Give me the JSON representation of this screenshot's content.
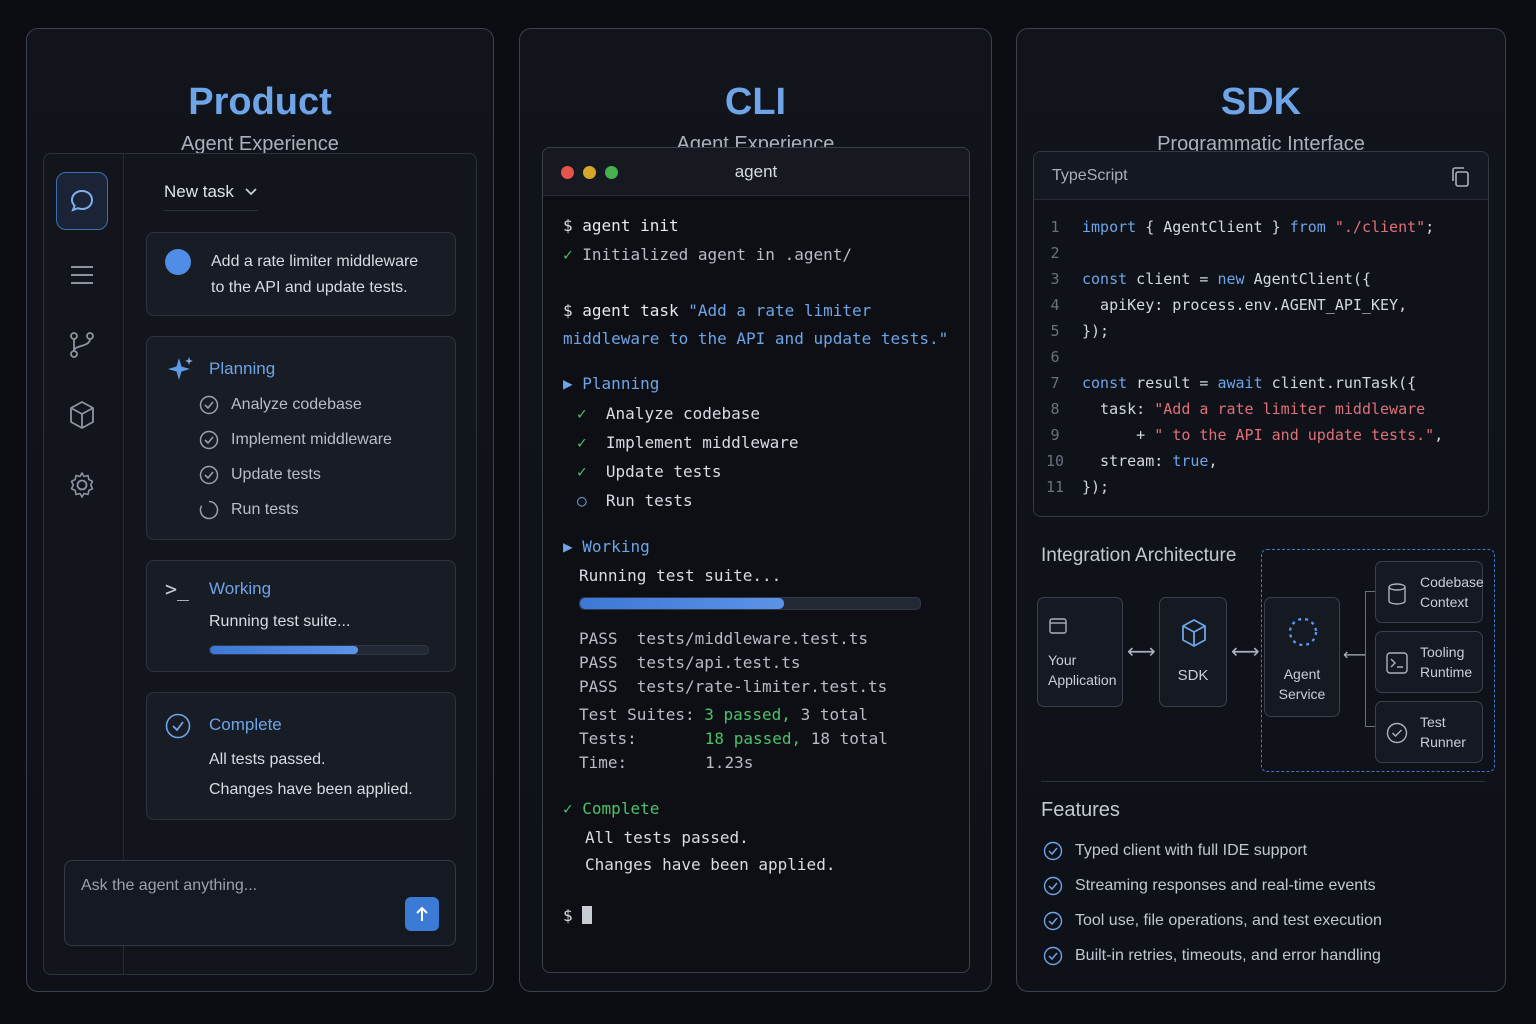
{
  "product": {
    "title": "Product",
    "subtitle": "Agent Experience",
    "new_task": "New task",
    "prompt_line1": "Add a rate limiter middleware",
    "prompt_line2": "to the API and update tests.",
    "planning": {
      "label": "Planning",
      "items": [
        "Analyze codebase",
        "Implement middleware",
        "Update tests",
        "Run tests"
      ]
    },
    "working": {
      "label": "Working",
      "text": "Running test suite...",
      "progress": 0.68
    },
    "complete": {
      "label": "Complete",
      "line1": "All tests passed.",
      "line2": "Changes have been applied."
    },
    "ask_placeholder": "Ask the agent anything...",
    "rail_icons": [
      "chat-icon",
      "menu-icon",
      "branch-icon",
      "cube-icon",
      "gear-icon"
    ]
  },
  "cli": {
    "title": "CLI",
    "subtitle": "Agent Experience",
    "window_title": "agent",
    "prompt": "$",
    "init_cmd": "agent init",
    "init_result": "Initialized agent in .agent/",
    "task_cmd": "agent task",
    "task_arg1": "\"Add a rate limiter",
    "task_arg2": "middleware to the API and update tests.\"",
    "planning_label": "Planning",
    "plan_items": [
      "Analyze codebase",
      "Implement middleware",
      "Update tests",
      "Run tests"
    ],
    "working_label": "Working",
    "working_text": "Running test suite...",
    "progress": 0.6,
    "pass_label": "PASS",
    "pass_files": [
      "tests/middleware.test.ts",
      "tests/api.test.ts",
      "tests/rate-limiter.test.ts"
    ],
    "suites_label": "Test Suites:",
    "suites_passed": "3 passed,",
    "suites_total": "3 total",
    "tests_label": "Tests:",
    "tests_passed": "18 passed,",
    "tests_total": "18 total",
    "time_label": "Time:",
    "time_value": "1.23s",
    "complete_label": "Complete",
    "complete_line1": "All tests passed.",
    "complete_line2": "Changes have been applied.",
    "colors": {
      "red": "#e5534b",
      "yellow": "#d6a62a",
      "green": "#45b24f"
    }
  },
  "sdk": {
    "title": "SDK",
    "subtitle": "Programmatic Interface",
    "language": "TypeScript",
    "code": {
      "l1": [
        "import",
        " { AgentClient } ",
        "from",
        " \"./client\"",
        ";"
      ],
      "l3": [
        "const",
        " client = ",
        "new",
        " AgentClient({"
      ],
      "l4": "  apiKey: process.env.AGENT_API_KEY,",
      "l5": "});",
      "l7": [
        "const",
        " result = ",
        "await",
        " client.runTask({"
      ],
      "l8": [
        "  task: ",
        "\"Add a rate limiter middleware"
      ],
      "l9": [
        "      + ",
        "\" to the API and update tests.\"",
        ","
      ],
      "l10": [
        "  stream: ",
        "true",
        ","
      ],
      "l11": "});",
      "line_numbers": [
        "1",
        "2",
        "3",
        "4",
        "5",
        "6",
        "7",
        "8",
        "9",
        "10",
        "11"
      ]
    },
    "architecture": {
      "title": "Integration Architecture",
      "app_line1": "Your",
      "app_line2": "Application",
      "sdk": "SDK",
      "agent_line1": "Agent",
      "agent_line2": "Service",
      "ctx_line1": "Codebase",
      "ctx_line2": "Context",
      "tool_line1": "Tooling",
      "tool_line2": "Runtime",
      "test_line1": "Test",
      "test_line2": "Runner"
    },
    "features": {
      "title": "Features",
      "items": [
        "Typed client with full IDE support",
        "Streaming responses and real-time events",
        "Tool use, file operations, and test execution",
        "Built-in retries, timeouts, and error handling"
      ]
    }
  }
}
